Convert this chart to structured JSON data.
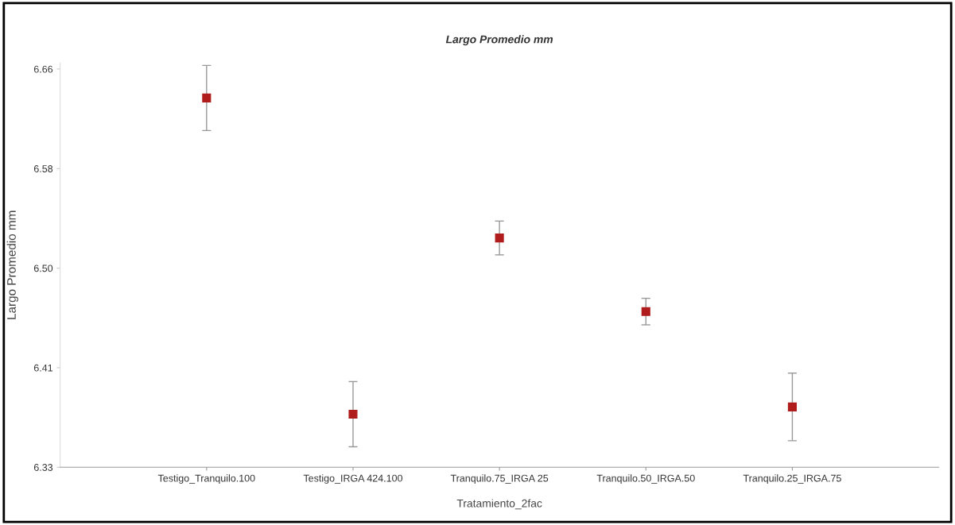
{
  "chart_data": {
    "type": "scatter",
    "title": "Largo Promedio mm",
    "xlabel": "Tratamiento_2fac",
    "ylabel": "Largo Promedio mm",
    "categories": [
      "Testigo_Tranquilo.100",
      "Testigo_IRGA 424.100",
      "Tranquilo.75_IRGA 25",
      "Tranquilo.50_IRGA.50",
      "Tranquilo.25_IRGA.75"
    ],
    "series": [
      {
        "color": "#b01c1c",
        "values": [
          6.636,
          6.374,
          6.52,
          6.459,
          6.38
        ],
        "errors": [
          0.027,
          0.027,
          0.014,
          0.011,
          0.028
        ]
      }
    ],
    "ylim": [
      6.33,
      6.665
    ],
    "yticks": [
      6.33,
      {
        "value": 6.4125,
        "label": "6.41"
      },
      {
        "value": 6.495,
        "label": "6.50"
      },
      {
        "value": 6.5775,
        "label": "6.58"
      },
      6.66
    ],
    "marker": "square",
    "grid": false,
    "legend": false
  }
}
